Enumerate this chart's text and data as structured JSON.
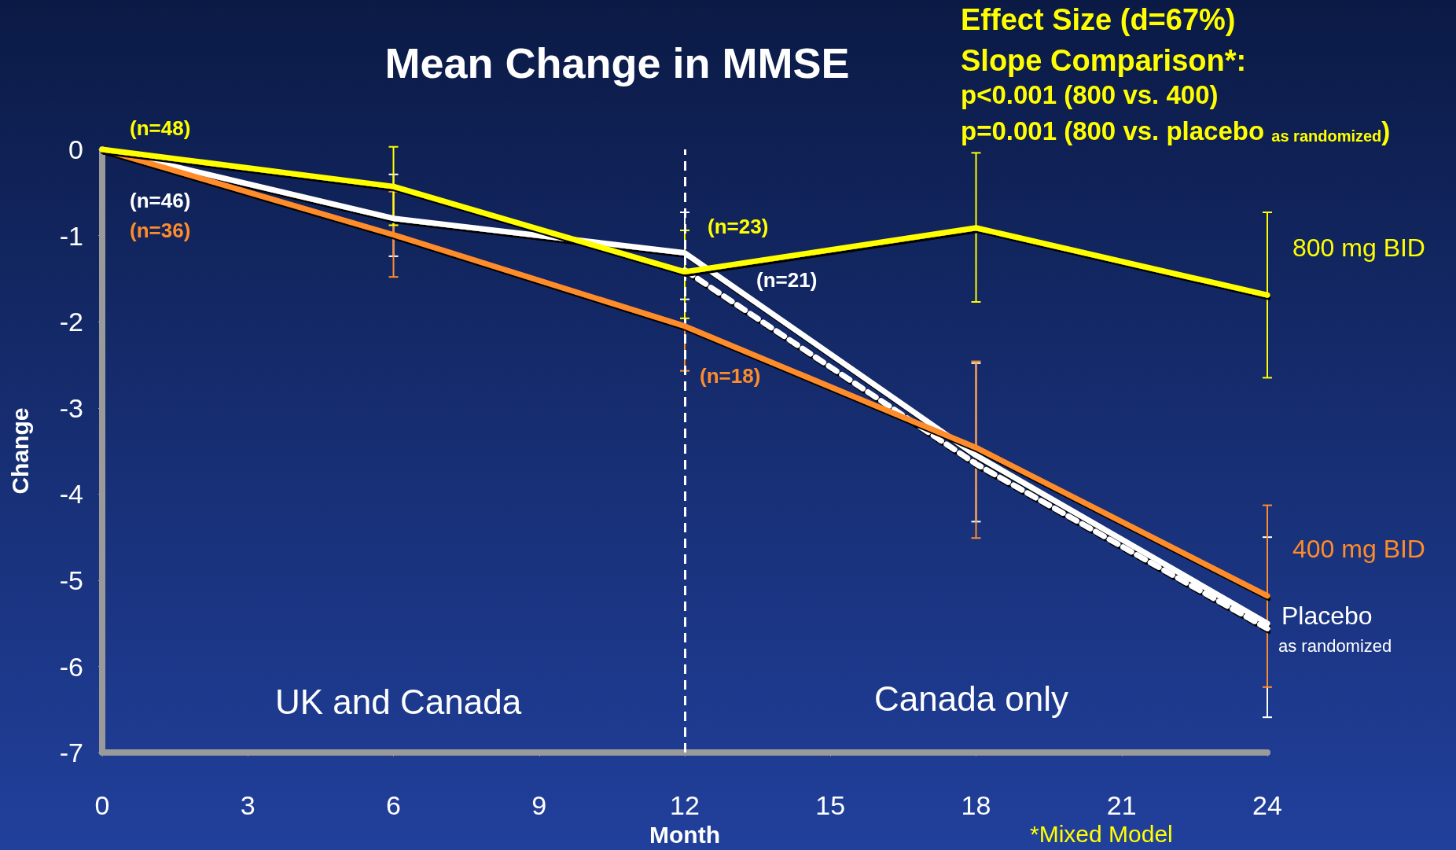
{
  "chart_data": {
    "type": "line",
    "title": "Mean Change in MMSE",
    "xlabel": "Month",
    "ylabel": "Change",
    "xlim": [
      0,
      24
    ],
    "xticks": [
      0,
      3,
      6,
      9,
      12,
      15,
      18,
      21,
      24
    ],
    "ylim": [
      -7,
      0
    ],
    "yticks": [
      -7,
      -6,
      -5,
      -4,
      -3,
      -2,
      -1,
      0
    ],
    "grid": false,
    "legend": false,
    "marker": "none",
    "line_style": "solid",
    "series": [
      {
        "name": "Placebo",
        "color": "#ffffff",
        "x": [
          0,
          6,
          12,
          18,
          24
        ],
        "values": [
          0,
          -0.8,
          -1.2,
          -3.55,
          -5.5
        ],
        "errors": [
          null,
          [
            -1.24,
            -0.29
          ],
          [
            -1.74,
            -0.73
          ],
          null,
          null
        ]
      },
      {
        "name": "as randomized",
        "color": "#ffffff",
        "line_style": "dashed",
        "x": [
          12,
          18,
          24
        ],
        "values": [
          -1.4,
          -3.65,
          -5.56
        ],
        "errors": [
          null,
          [
            -4.32,
            -2.48
          ],
          [
            -6.59,
            -4.5
          ]
        ]
      },
      {
        "name": "400 mg BID",
        "color": "#ff8c2a",
        "x": [
          0,
          6,
          12,
          18,
          24
        ],
        "values": [
          0,
          -0.99,
          -2.05,
          -3.46,
          -5.18
        ],
        "errors": [
          null,
          [
            -1.48,
            -0.49
          ],
          [
            -2.57,
            -1.42
          ],
          [
            -4.51,
            -2.46
          ],
          [
            -6.24,
            -4.13
          ]
        ]
      },
      {
        "name": "800 mg BID",
        "color": "#ffff00",
        "x": [
          0,
          6,
          12,
          18,
          24
        ],
        "values": [
          0,
          -0.43,
          -1.42,
          -0.91,
          -1.69
        ],
        "errors": [
          null,
          [
            -0.88,
            0.03
          ],
          [
            -1.96,
            -0.94
          ],
          [
            -1.77,
            -0.04
          ],
          [
            -2.65,
            -0.73
          ]
        ]
      }
    ],
    "ref_lines": [
      {
        "axis": "x",
        "value": 12,
        "label": null,
        "color": "#ffffff",
        "line_style": "dashed"
      }
    ],
    "annotations": [
      "Effect Size (d=67%)",
      "Slope Comparison*:",
      "p<0.001 (800 vs. 400)",
      "p=0.001 (800 vs. placebo $_{as randomized}$)",
      "*Mixed Model",
      "(n=48)",
      "(n=46)",
      "(n=36)",
      "(n=23)",
      "(n=21)",
      "(n=18)",
      "UK and Canada",
      "Canada only"
    ]
  }
}
